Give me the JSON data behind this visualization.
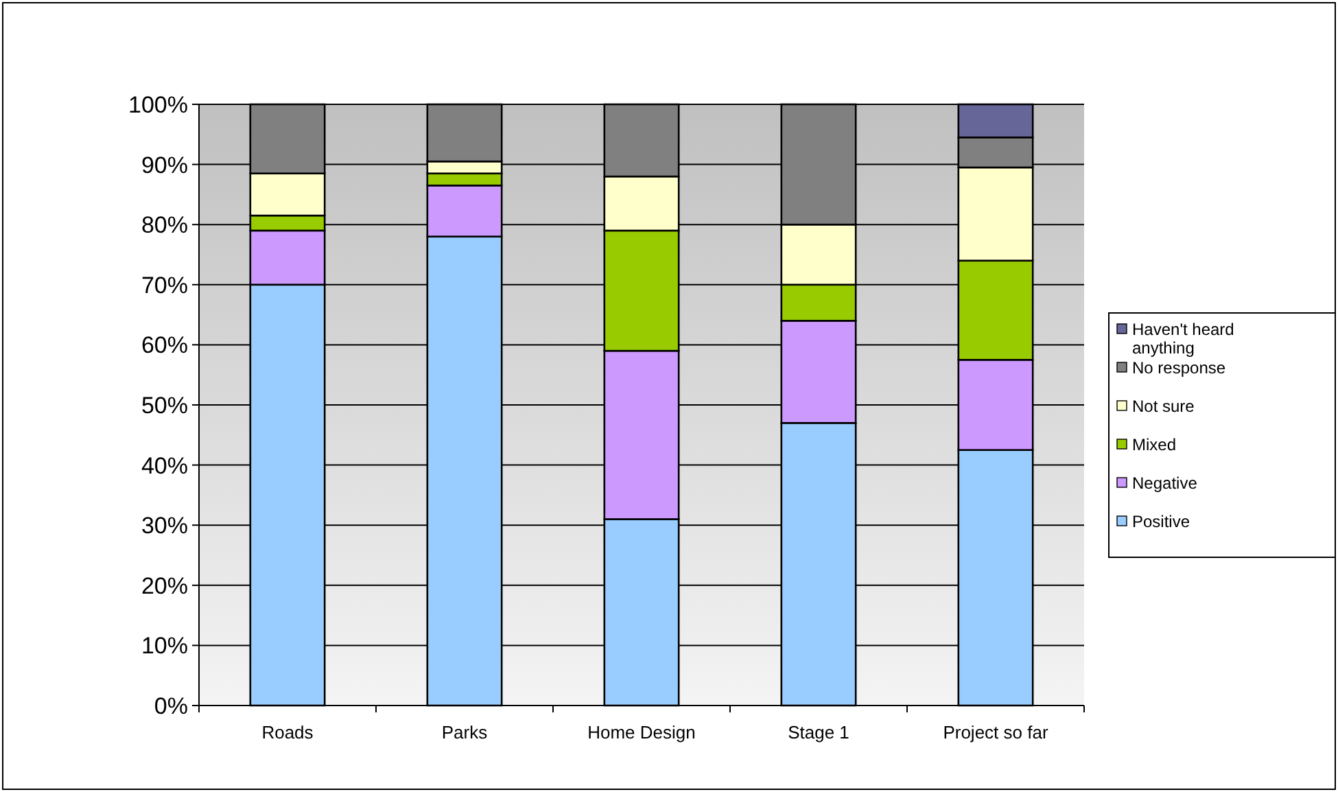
{
  "chart_data": {
    "type": "bar",
    "stacked": true,
    "categories": [
      "Roads",
      "Parks",
      "Home Design",
      "Stage 1",
      "Project so far"
    ],
    "series": [
      {
        "name": "Positive",
        "color": "#99ccff",
        "values": [
          70,
          78,
          31,
          47,
          42.5
        ]
      },
      {
        "name": "Negative",
        "color": "#cc99ff",
        "values": [
          9,
          8.5,
          28,
          17,
          15
        ]
      },
      {
        "name": "Mixed",
        "color": "#99cc00",
        "values": [
          2.5,
          2,
          20,
          6,
          16.5
        ]
      },
      {
        "name": "Not sure",
        "color": "#ffffcc",
        "values": [
          7,
          2,
          9,
          10,
          15.5
        ]
      },
      {
        "name": "No response",
        "color": "#808080",
        "values": [
          11.5,
          9.5,
          12,
          20,
          5
        ]
      },
      {
        "name": "Haven't heard anything",
        "color": "#666699",
        "values": [
          0,
          0,
          0,
          0,
          5.5
        ]
      }
    ],
    "ylim": [
      0,
      100
    ],
    "yticks": [
      {
        "value": 0,
        "label": "0%"
      },
      {
        "value": 10,
        "label": "10%"
      },
      {
        "value": 20,
        "label": "20%"
      },
      {
        "value": 30,
        "label": "30%"
      },
      {
        "value": 40,
        "label": "40%"
      },
      {
        "value": 50,
        "label": "50%"
      },
      {
        "value": 60,
        "label": "60%"
      },
      {
        "value": 70,
        "label": "70%"
      },
      {
        "value": 80,
        "label": "80%"
      },
      {
        "value": 90,
        "label": "90%"
      },
      {
        "value": 100,
        "label": "100%"
      }
    ],
    "grid": "y",
    "legend": "right"
  }
}
